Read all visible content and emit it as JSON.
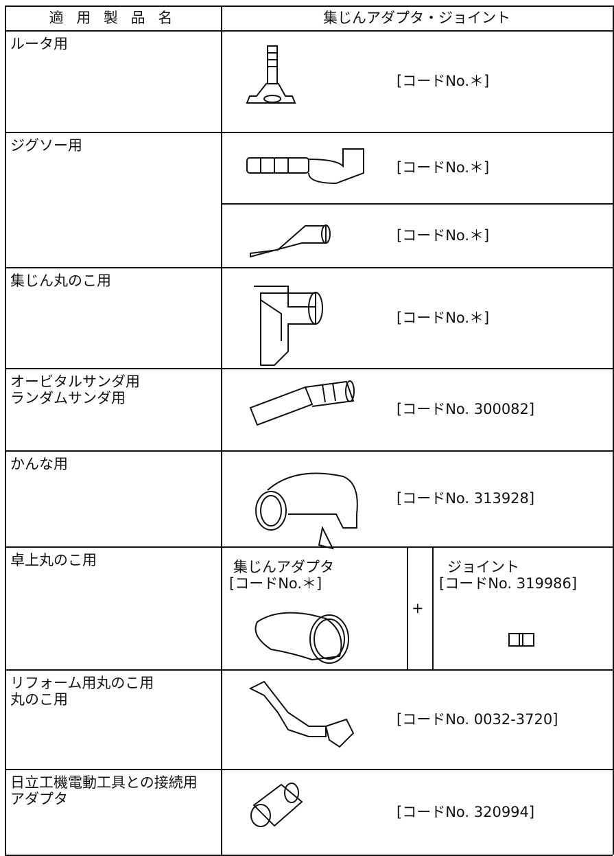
{
  "header": {
    "product": "適 用 製 品 名",
    "adapter": "集じんアダプタ・ジョイント"
  },
  "rows": [
    {
      "product": [
        "ルータ用"
      ],
      "items": [
        {
          "code": "[コードNo.＊]"
        }
      ]
    },
    {
      "product": [
        "ジグソー用"
      ],
      "items": [
        {
          "code": "[コードNo.＊]"
        },
        {
          "code": "[コードNo.＊]"
        }
      ]
    },
    {
      "product": [
        "集じん丸のこ用"
      ],
      "items": [
        {
          "code": "[コードNo.＊]"
        }
      ]
    },
    {
      "product": [
        "オービタルサンダ用",
        "ランダムサンダ用"
      ],
      "items": [
        {
          "code": "[コードNo. 300082]"
        }
      ]
    },
    {
      "product": [
        "かんな用"
      ],
      "items": [
        {
          "code": "[コードNo. 313928]"
        }
      ]
    },
    {
      "product": [
        "卓上丸のこ用"
      ],
      "combo": {
        "adapter_label": "集じんアダプタ",
        "adapter_code": "[コードNo.＊]",
        "plus": "+",
        "joint_label": "ジョイント",
        "joint_code": "[コードNo. 319986]"
      }
    },
    {
      "product": [
        "リフォーム用丸のこ用",
        "丸のこ用"
      ],
      "items": [
        {
          "code": "[コードNo. 0032-3720]"
        }
      ]
    },
    {
      "product": [
        "日立工機電動工具との接続用",
        "アダプタ"
      ],
      "items": [
        {
          "code": "[コードNo. 320994]"
        }
      ]
    }
  ]
}
